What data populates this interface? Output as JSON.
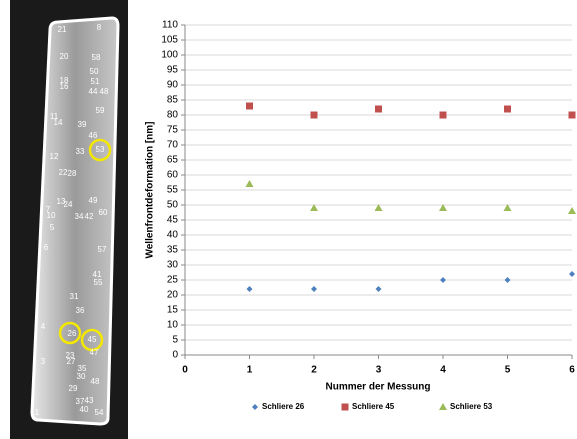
{
  "image": {
    "labels": [
      "21",
      "8",
      "20",
      "58",
      "50",
      "18",
      "16",
      "51",
      "44",
      "48",
      "59",
      "11",
      "14",
      "39",
      "46",
      "53",
      "33",
      "12",
      "22",
      "28",
      "49",
      "13",
      "24",
      "7",
      "10",
      "34",
      "42",
      "60",
      "5",
      "6",
      "57",
      "41",
      "55",
      "31",
      "36",
      "4",
      "26",
      "45",
      "47",
      "3",
      "23",
      "27",
      "35",
      "30",
      "48",
      "29",
      "37",
      "43",
      "40",
      "54",
      "1"
    ]
  },
  "chart_data": {
    "type": "scatter",
    "x_label": "Nummer der Messung",
    "y_label": "Wellenfrontdeformation [nm]",
    "xlim": [
      0,
      6
    ],
    "xticks": [
      0,
      1,
      2,
      3,
      4,
      5,
      6
    ],
    "ylim": [
      0,
      110
    ],
    "yticks": [
      0,
      5,
      10,
      15,
      20,
      25,
      30,
      35,
      40,
      45,
      50,
      55,
      60,
      65,
      70,
      75,
      80,
      85,
      90,
      95,
      100,
      105,
      110
    ],
    "grid": true,
    "legend": "bottom",
    "series": [
      {
        "name": "Schliere 26",
        "color": "#4f81bd",
        "marker": "diamond",
        "x": [
          1,
          2,
          3,
          4,
          5,
          6
        ],
        "values": [
          22,
          22,
          22,
          25,
          25,
          27
        ]
      },
      {
        "name": "Schliere 45",
        "color": "#c0504d",
        "marker": "square",
        "x": [
          1,
          2,
          3,
          4,
          5,
          6
        ],
        "values": [
          83,
          80,
          82,
          80,
          82,
          80
        ]
      },
      {
        "name": "Schliere 53",
        "color": "#9bbb59",
        "marker": "triangle",
        "x": [
          1,
          2,
          3,
          4,
          5,
          6
        ],
        "values": [
          57,
          49,
          49,
          49,
          49,
          48
        ]
      }
    ]
  }
}
